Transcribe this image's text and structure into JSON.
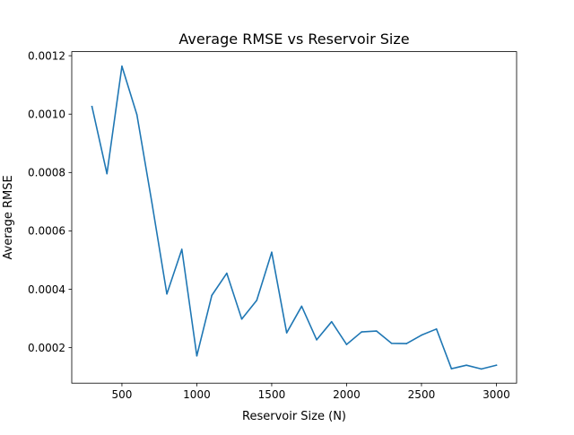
{
  "chart_data": {
    "type": "line",
    "title": "Average RMSE vs Reservoir Size",
    "xlabel": "Reservoir Size (N)",
    "ylabel": "Average RMSE",
    "xlim": [
      165,
      3135
    ],
    "ylim": [
      7.85e-05,
      0.0012139
    ],
    "xticks": [
      500,
      1000,
      1500,
      2000,
      2500,
      3000
    ],
    "xtick_labels": [
      "500",
      "1000",
      "1500",
      "2000",
      "2500",
      "3000"
    ],
    "yticks": [
      0.0002,
      0.0004,
      0.0006,
      0.0008,
      0.001,
      0.0012
    ],
    "ytick_labels": [
      "0.0002",
      "0.0004",
      "0.0006",
      "0.0008",
      "0.0010",
      "0.0012"
    ],
    "grid": false,
    "legend": "none",
    "color": "#1f77b4",
    "series": [
      {
        "x": [
          300,
          400,
          500,
          600,
          700,
          800,
          900,
          1000,
          1100,
          1200,
          1300,
          1400,
          1500,
          1600,
          1700,
          1800,
          1900,
          2000,
          2100,
          2200,
          2300,
          2400,
          2500,
          2600,
          2700,
          2800,
          2900,
          3000
        ],
        "values": [
          0.001026,
          0.000796,
          0.001164,
          0.000998,
          0.000697,
          0.000384,
          0.000537,
          0.000172,
          0.000379,
          0.000455,
          0.000298,
          0.000362,
          0.000527,
          0.000251,
          0.000342,
          0.000227,
          0.000289,
          0.000211,
          0.000254,
          0.000257,
          0.000215,
          0.000214,
          0.000243,
          0.000264,
          0.000128,
          0.00014,
          0.000127,
          0.00014
        ]
      }
    ]
  }
}
